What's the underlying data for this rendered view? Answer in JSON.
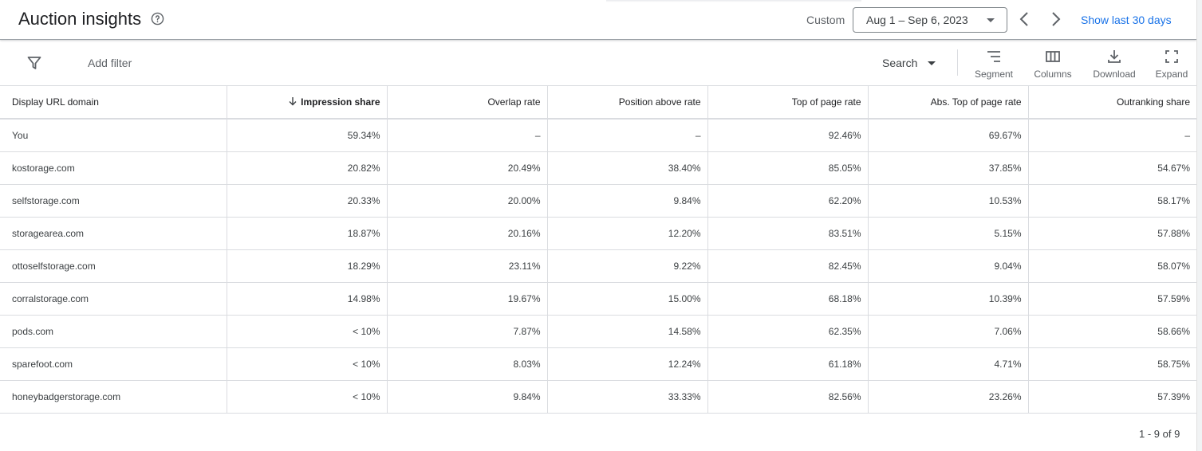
{
  "header": {
    "title": "Auction insights",
    "custom_label": "Custom",
    "date_range": "Aug 1 – Sep 6, 2023",
    "show_last_label": "Show last 30 days"
  },
  "toolbar": {
    "add_filter": "Add filter",
    "search_select": "Search",
    "segment": "Segment",
    "columns": "Columns",
    "download": "Download",
    "expand": "Expand"
  },
  "table": {
    "columns": [
      "Display URL domain",
      "Impression share",
      "Overlap rate",
      "Position above rate",
      "Top of page rate",
      "Abs. Top of page rate",
      "Outranking share"
    ],
    "sorted_column": "Impression share",
    "rows": [
      [
        "You",
        "59.34%",
        "–",
        "–",
        "92.46%",
        "69.67%",
        "–"
      ],
      [
        "kostorage.com",
        "20.82%",
        "20.49%",
        "38.40%",
        "85.05%",
        "37.85%",
        "54.67%"
      ],
      [
        "selfstorage.com",
        "20.33%",
        "20.00%",
        "9.84%",
        "62.20%",
        "10.53%",
        "58.17%"
      ],
      [
        "storagearea.com",
        "18.87%",
        "20.16%",
        "12.20%",
        "83.51%",
        "5.15%",
        "57.88%"
      ],
      [
        "ottoselfstorage.com",
        "18.29%",
        "23.11%",
        "9.22%",
        "82.45%",
        "9.04%",
        "58.07%"
      ],
      [
        "corralstorage.com",
        "14.98%",
        "19.67%",
        "15.00%",
        "68.18%",
        "10.39%",
        "57.59%"
      ],
      [
        "pods.com",
        "< 10%",
        "7.87%",
        "14.58%",
        "62.35%",
        "7.06%",
        "58.66%"
      ],
      [
        "sparefoot.com",
        "< 10%",
        "8.03%",
        "12.24%",
        "61.18%",
        "4.71%",
        "58.75%"
      ],
      [
        "honeybadgerstorage.com",
        "< 10%",
        "9.84%",
        "33.33%",
        "82.56%",
        "23.26%",
        "57.39%"
      ]
    ]
  },
  "pagination": "1 - 9 of 9",
  "colors": {
    "link": "#1a73e8",
    "text": "#202124",
    "muted": "#5f6368",
    "border": "#dadce0"
  }
}
